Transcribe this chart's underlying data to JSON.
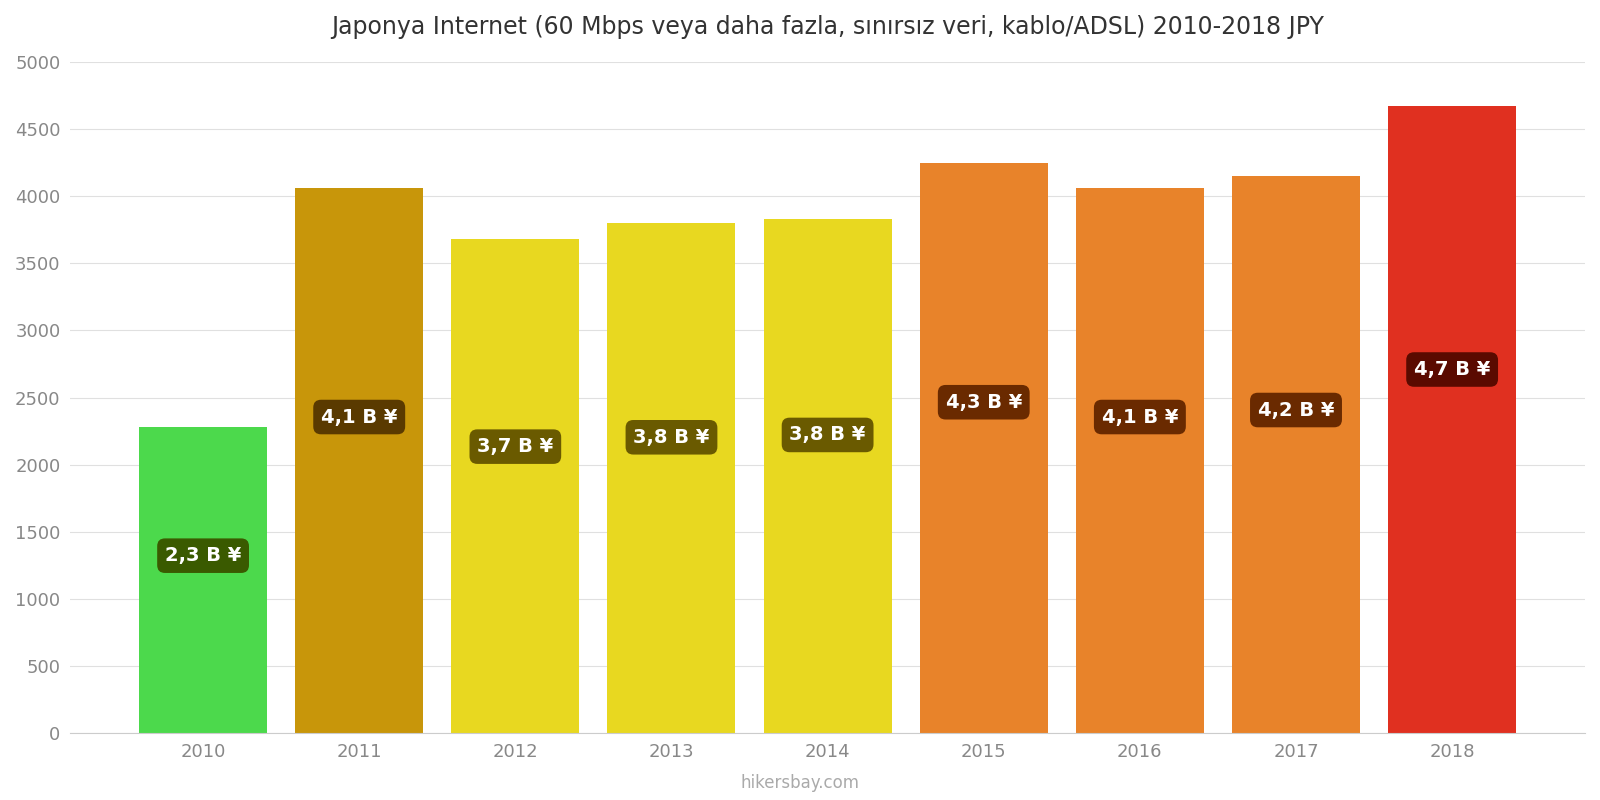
{
  "title": "Japonya Internet (60 Mbps veya daha fazla, sınırsız veri, kablo/ADSL) 2010-2018 JPY",
  "years": [
    2010,
    2011,
    2012,
    2013,
    2014,
    2015,
    2016,
    2017,
    2018
  ],
  "values": [
    2280,
    4060,
    3680,
    3800,
    3830,
    4250,
    4060,
    4150,
    4670
  ],
  "bar_colors": [
    "#4cd94c",
    "#c8960a",
    "#e8d820",
    "#e8d820",
    "#e8d820",
    "#e8832a",
    "#e8832a",
    "#e8832a",
    "#e03020"
  ],
  "label_texts": [
    "2,3 B ¥",
    "4,1 B ¥",
    "3,7 B ¥",
    "3,8 B ¥",
    "3,8 B ¥",
    "4,3 B ¥",
    "4,1 B ¥",
    "4,2 B ¥",
    "4,7 B ¥"
  ],
  "label_bg_colors": [
    "#3a5a00",
    "#5a3a00",
    "#6a5a00",
    "#6a5a00",
    "#6a5a00",
    "#6a2a00",
    "#6a2a00",
    "#6a2a00",
    "#5a0a00"
  ],
  "label_text_color": "#ffffff",
  "ylim": [
    0,
    5000
  ],
  "yticks": [
    0,
    500,
    1000,
    1500,
    2000,
    2500,
    3000,
    3500,
    4000,
    4500,
    5000
  ],
  "background_color": "#ffffff",
  "grid_color": "#e0e0e0",
  "watermark": "hikersbay.com",
  "title_fontsize": 17,
  "label_fontsize": 14,
  "bar_width": 0.82
}
